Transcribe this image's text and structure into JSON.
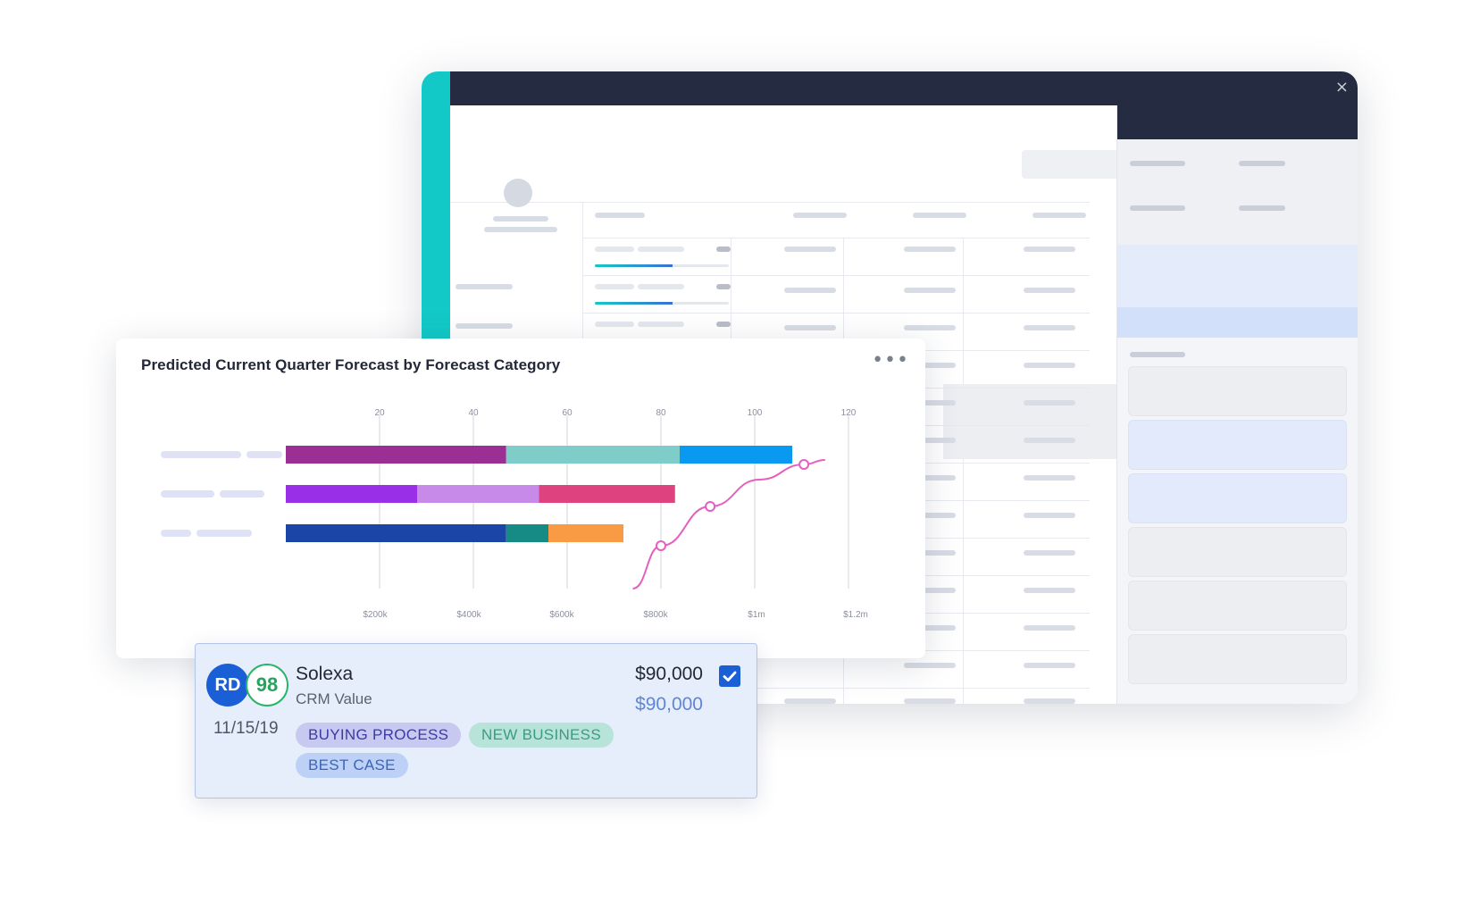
{
  "window": {
    "close_icon": "×"
  },
  "chart": {
    "title": "Predicted Current Quarter Forecast by Forecast Category",
    "more_label": "•••"
  },
  "chart_data": {
    "type": "bar",
    "orientation": "horizontal",
    "stacked": true,
    "title": "Predicted Current Quarter Forecast by Forecast Category",
    "top_axis": {
      "ticks": [
        "20",
        "40",
        "60",
        "80",
        "100",
        "120"
      ],
      "values": [
        20,
        40,
        60,
        80,
        100,
        120
      ]
    },
    "bottom_axis": {
      "ticks": [
        "$200k",
        "$400k",
        "$600k",
        "$800k",
        "$1m",
        "$1.2m"
      ],
      "values": [
        200,
        400,
        600,
        800,
        1000,
        1200
      ]
    },
    "xlim": [
      0,
      120
    ],
    "grid": true,
    "rows": [
      {
        "segments": [
          {
            "value": 47,
            "color": "#9b2f94"
          },
          {
            "value": 37,
            "color": "#7fcdc8"
          },
          {
            "value": 24,
            "color": "#0a99f0"
          }
        ]
      },
      {
        "segments": [
          {
            "value": 28,
            "color": "#9a2fe8"
          },
          {
            "value": 26,
            "color": "#c88ae8"
          },
          {
            "value": 29,
            "color": "#de4380"
          }
        ]
      },
      {
        "segments": [
          {
            "value": 47,
            "color": "#1c45a8"
          },
          {
            "value": 9,
            "color": "#168a84"
          },
          {
            "value": 16,
            "color": "#f99b45"
          }
        ]
      }
    ],
    "trend_line": {
      "color": "#e45fbe",
      "x": [
        74,
        80,
        90.5,
        101,
        110.5,
        115
      ],
      "markers_at": [
        80,
        90.5,
        110.5
      ]
    }
  },
  "deal": {
    "initials": "RD",
    "score": "98",
    "date": "11/15/19",
    "company": "Solexa",
    "subtitle": "CRM Value",
    "amount": "$90,000",
    "crm_amount": "$90,000",
    "checked": true,
    "tags": [
      "BUYING PROCESS",
      "NEW BUSINESS",
      "BEST CASE"
    ]
  },
  "colors": {
    "accent": "#12c9c7",
    "topbar": "#252b40",
    "primary": "#1a5fd6",
    "score_green": "#2bb56a"
  }
}
